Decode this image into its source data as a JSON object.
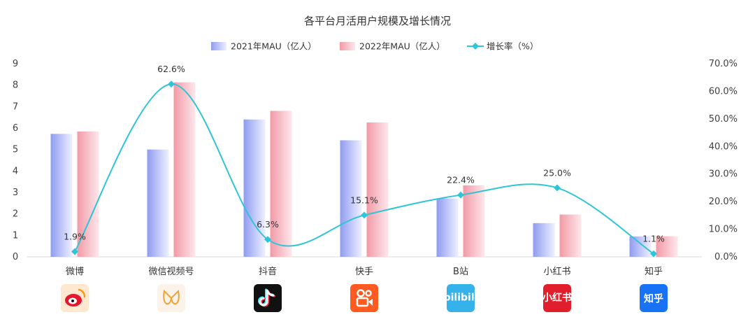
{
  "chart_data": {
    "type": "bar",
    "title": "各平台月活用户规模及增长情况",
    "categories": [
      "微博",
      "微信视频号",
      "抖音",
      "快手",
      "B站",
      "小红书",
      "知乎"
    ],
    "series": [
      {
        "name": "2021年MAU（亿人）",
        "kind": "bar",
        "axis": "left",
        "values": [
          5.73,
          5.0,
          6.4,
          5.43,
          2.72,
          1.57,
          0.95
        ],
        "color": "#8f9cf0"
      },
      {
        "name": "2022年MAU（亿人）",
        "kind": "bar",
        "axis": "left",
        "values": [
          5.84,
          8.13,
          6.8,
          6.26,
          3.33,
          1.97,
          0.96
        ],
        "color": "#f4a3ae"
      },
      {
        "name": "增长率（%）",
        "kind": "line",
        "axis": "right",
        "values": [
          1.9,
          62.6,
          6.3,
          15.1,
          22.4,
          25.0,
          1.1
        ],
        "color": "#2ec5d6",
        "smooth": true
      }
    ],
    "data_labels": [
      "1.9%",
      "62.6%",
      "6.3%",
      "15.1%",
      "22.4%",
      "25.0%",
      "1.1%"
    ],
    "left_axis": {
      "ylim": [
        0,
        9
      ],
      "ticks": [
        "0",
        "1",
        "2",
        "3",
        "4",
        "5",
        "6",
        "7",
        "8",
        "9"
      ]
    },
    "right_axis": {
      "ylim": [
        0,
        70
      ],
      "ticks": [
        "0.0%",
        "10.0%",
        "20.0%",
        "30.0%",
        "40.0%",
        "50.0%",
        "60.0%",
        "70.0%"
      ]
    },
    "legend_position": "top-center",
    "grid": false,
    "platform_icons": [
      {
        "name": "weibo-icon",
        "bg": "#ffe8cf",
        "fg": "#e6162d",
        "glyph": ""
      },
      {
        "name": "wechat-channels-icon",
        "bg": "#fbf3ea",
        "fg": "#f0a235",
        "glyph": ""
      },
      {
        "name": "douyin-icon",
        "bg": "#111111",
        "fg": "#ffffff",
        "glyph": ""
      },
      {
        "name": "kuaishou-icon",
        "bg": "#ff5a1f",
        "fg": "#ffffff",
        "glyph": ""
      },
      {
        "name": "bilibili-icon",
        "bg": "#35b2ea",
        "fg": "#ffffff",
        "glyph": "bilibili"
      },
      {
        "name": "xiaohongshu-icon",
        "bg": "#e11e2b",
        "fg": "#ffffff",
        "glyph": "小红书"
      },
      {
        "name": "zhihu-icon",
        "bg": "#1772f6",
        "fg": "#ffffff",
        "glyph": "知乎"
      }
    ]
  }
}
